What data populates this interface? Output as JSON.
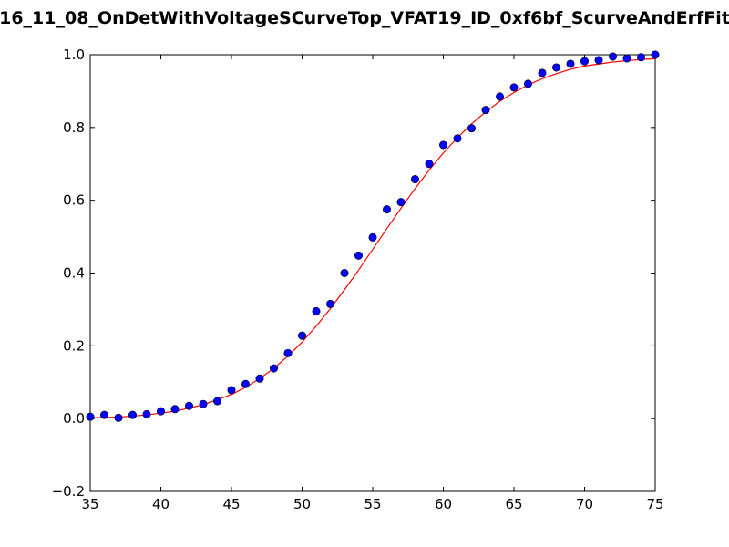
{
  "chart_data": {
    "type": "scatter",
    "title": "16_11_08_OnDetWithVoltageSCurveTop_VFAT19_ID_0xf6bf_ScurveAndErfFit",
    "xlabel": "",
    "ylabel": "",
    "xlim": [
      35,
      75
    ],
    "ylim": [
      -0.2,
      1.0
    ],
    "x_ticks": [
      35,
      40,
      45,
      50,
      55,
      60,
      65,
      70,
      75
    ],
    "y_ticks": [
      -0.2,
      0.0,
      0.2,
      0.4,
      0.6,
      0.8,
      1.0
    ],
    "x_tick_labels": [
      "35",
      "40",
      "45",
      "50",
      "55",
      "60",
      "65",
      "70",
      "75"
    ],
    "y_tick_labels": [
      "−0.2",
      "0.0",
      "0.2",
      "0.4",
      "0.6",
      "0.8",
      "1.0"
    ],
    "grid": false,
    "series": [
      {
        "kind": "points",
        "color": "#0000ff",
        "x": [
          35,
          36,
          37,
          38,
          39,
          40,
          41,
          42,
          43,
          44,
          45,
          46,
          47,
          48,
          49,
          50,
          51,
          52,
          53,
          54,
          55,
          56,
          57,
          58,
          59,
          60,
          61,
          62,
          63,
          64,
          65,
          66,
          67,
          68,
          69,
          70,
          71,
          72,
          73,
          74,
          75
        ],
        "y": [
          0.005,
          0.01,
          0.002,
          0.01,
          0.012,
          0.02,
          0.026,
          0.035,
          0.04,
          0.048,
          0.078,
          0.095,
          0.11,
          0.138,
          0.18,
          0.228,
          0.295,
          0.315,
          0.4,
          0.448,
          0.498,
          0.575,
          0.595,
          0.658,
          0.7,
          0.752,
          0.77,
          0.798,
          0.848,
          0.885,
          0.91,
          0.92,
          0.95,
          0.965,
          0.975,
          0.982,
          0.985,
          0.995,
          0.99,
          0.993,
          1.0
        ]
      },
      {
        "kind": "fit-line",
        "color": "#ff0000",
        "x": [
          35,
          37,
          39,
          41,
          43,
          45,
          46,
          47,
          48,
          49,
          50,
          51,
          52,
          53,
          54,
          55,
          56,
          57,
          58,
          59,
          60,
          61,
          62,
          63,
          64,
          65,
          66,
          67,
          68,
          69,
          70,
          72,
          74,
          75
        ],
        "y": [
          0.002,
          0.004,
          0.01,
          0.02,
          0.038,
          0.066,
          0.086,
          0.11,
          0.138,
          0.172,
          0.21,
          0.254,
          0.302,
          0.354,
          0.408,
          0.465,
          0.522,
          0.578,
          0.632,
          0.683,
          0.73,
          0.772,
          0.81,
          0.843,
          0.872,
          0.896,
          0.917,
          0.934,
          0.948,
          0.96,
          0.969,
          0.98,
          0.987,
          0.989
        ]
      }
    ]
  }
}
